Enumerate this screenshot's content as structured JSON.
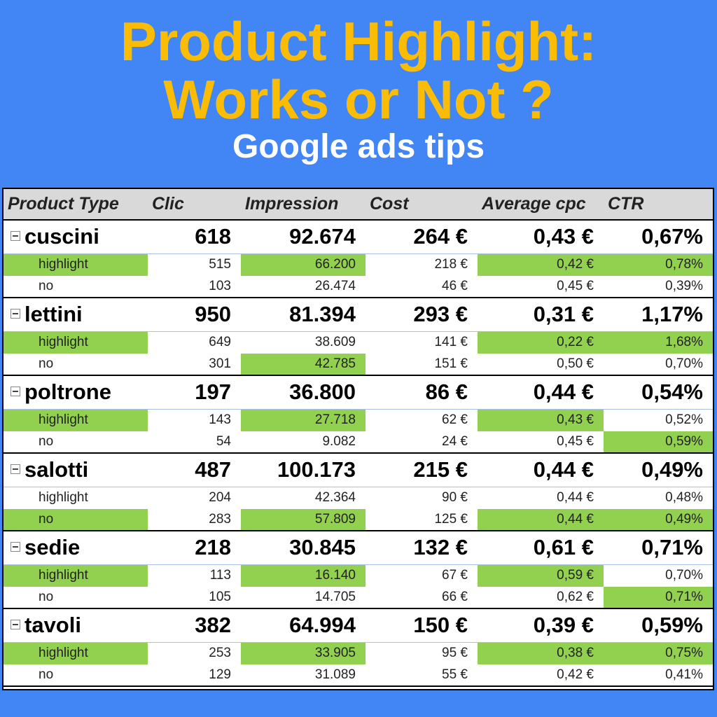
{
  "title_line_1": "Product Highlight:",
  "title_line_2": "Works or Not ?",
  "subtitle": "Google ads tips",
  "colors": {
    "background": "#4285f4",
    "title": "#fbbc05",
    "subtitle": "#ffffff",
    "highlight_cell": "#92d050",
    "header_bg": "#d9d9d9"
  },
  "chart_data": {
    "type": "table",
    "columns": [
      "Product Type",
      "Clic",
      "Impression",
      "Cost",
      "Average cpc",
      "CTR"
    ],
    "groups": [
      {
        "name": "cuscini",
        "clic": "618",
        "impression": "92.674",
        "cost": "264 €",
        "avg_cpc": "0,43 €",
        "ctr": "0,67%",
        "rows": [
          {
            "name": "highlight",
            "clic": "515",
            "impression": "66.200",
            "cost": "218 €",
            "avg_cpc": "0,42 €",
            "ctr": "0,78%",
            "green": [
              "name",
              "impression",
              "avg_cpc",
              "ctr"
            ]
          },
          {
            "name": "no",
            "clic": "103",
            "impression": "26.474",
            "cost": "46 €",
            "avg_cpc": "0,45 €",
            "ctr": "0,39%",
            "green": []
          }
        ]
      },
      {
        "name": "lettini",
        "clic": "950",
        "impression": "81.394",
        "cost": "293 €",
        "avg_cpc": "0,31 €",
        "ctr": "1,17%",
        "rows": [
          {
            "name": "highlight",
            "clic": "649",
            "impression": "38.609",
            "cost": "141 €",
            "avg_cpc": "0,22 €",
            "ctr": "1,68%",
            "green": [
              "name",
              "avg_cpc",
              "ctr"
            ]
          },
          {
            "name": "no",
            "clic": "301",
            "impression": "42.785",
            "cost": "151 €",
            "avg_cpc": "0,50 €",
            "ctr": "0,70%",
            "green": [
              "impression"
            ]
          }
        ]
      },
      {
        "name": "poltrone",
        "clic": "197",
        "impression": "36.800",
        "cost": "86 €",
        "avg_cpc": "0,44 €",
        "ctr": "0,54%",
        "rows": [
          {
            "name": "highlight",
            "clic": "143",
            "impression": "27.718",
            "cost": "62 €",
            "avg_cpc": "0,43 €",
            "ctr": "0,52%",
            "green": [
              "name",
              "impression",
              "avg_cpc"
            ]
          },
          {
            "name": "no",
            "clic": "54",
            "impression": "9.082",
            "cost": "24 €",
            "avg_cpc": "0,45 €",
            "ctr": "0,59%",
            "green": [
              "ctr"
            ]
          }
        ]
      },
      {
        "name": "salotti",
        "clic": "487",
        "impression": "100.173",
        "cost": "215 €",
        "avg_cpc": "0,44 €",
        "ctr": "0,49%",
        "rows": [
          {
            "name": "highlight",
            "clic": "204",
            "impression": "42.364",
            "cost": "90 €",
            "avg_cpc": "0,44 €",
            "ctr": "0,48%",
            "green": []
          },
          {
            "name": "no",
            "clic": "283",
            "impression": "57.809",
            "cost": "125 €",
            "avg_cpc": "0,44 €",
            "ctr": "0,49%",
            "green": [
              "name",
              "impression",
              "avg_cpc",
              "ctr"
            ]
          }
        ]
      },
      {
        "name": "sedie",
        "clic": "218",
        "impression": "30.845",
        "cost": "132 €",
        "avg_cpc": "0,61 €",
        "ctr": "0,71%",
        "rows": [
          {
            "name": "highlight",
            "clic": "113",
            "impression": "16.140",
            "cost": "67 €",
            "avg_cpc": "0,59 €",
            "ctr": "0,70%",
            "green": [
              "name",
              "impression",
              "avg_cpc"
            ]
          },
          {
            "name": "no",
            "clic": "105",
            "impression": "14.705",
            "cost": "66 €",
            "avg_cpc": "0,62 €",
            "ctr": "0,71%",
            "green": [
              "ctr"
            ]
          }
        ]
      },
      {
        "name": "tavoli",
        "clic": "382",
        "impression": "64.994",
        "cost": "150 €",
        "avg_cpc": "0,39 €",
        "ctr": "0,59%",
        "rows": [
          {
            "name": "highlight",
            "clic": "253",
            "impression": "33.905",
            "cost": "95 €",
            "avg_cpc": "0,38 €",
            "ctr": "0,75%",
            "green": [
              "name",
              "impression",
              "avg_cpc",
              "ctr"
            ]
          },
          {
            "name": "no",
            "clic": "129",
            "impression": "31.089",
            "cost": "55 €",
            "avg_cpc": "0,42 €",
            "ctr": "0,41%",
            "green": []
          }
        ]
      }
    ]
  }
}
